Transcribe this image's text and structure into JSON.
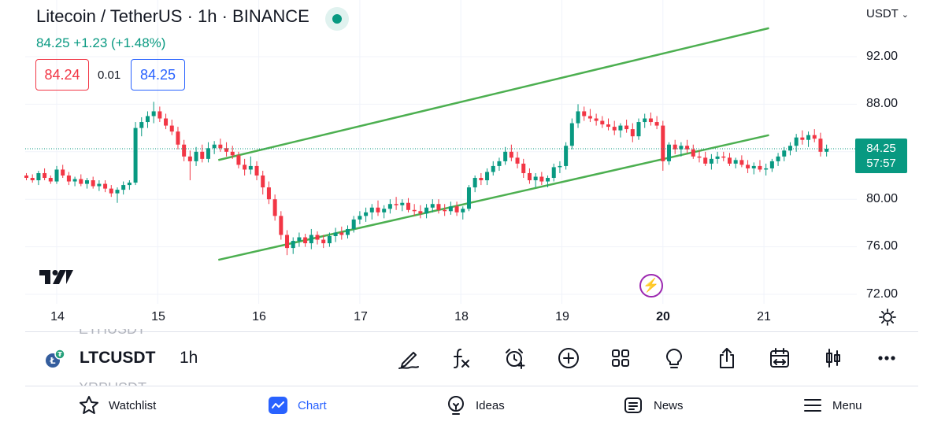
{
  "header": {
    "title": "Litecoin / TetherUS · 1h · BINANCE",
    "quote_line": "84.25 +1.23 (+1.48%)",
    "bid": "84.24",
    "spread": "0.01",
    "ask": "84.25",
    "currency": "USDT"
  },
  "price_axis": {
    "labels": [
      "92.00",
      "88.00",
      "80.00",
      "76.00",
      "72.00"
    ],
    "current_price": "84.25",
    "countdown": "57:57"
  },
  "time_axis": {
    "labels": [
      "14",
      "15",
      "16",
      "17",
      "18",
      "19",
      "20",
      "21"
    ],
    "highlighted": "20"
  },
  "chart_data": {
    "type": "candlestick",
    "series_name": "LTCUSDT",
    "interval": "1h",
    "y_range": [
      72,
      94
    ],
    "x_range": [
      14,
      21
    ],
    "up_color": "#089981",
    "down_color": "#f23645",
    "candles": [
      [
        13.7,
        82.0,
        82.2,
        81.6,
        81.8
      ],
      [
        13.76,
        81.8,
        82.1,
        81.4,
        81.6
      ],
      [
        13.82,
        81.6,
        82.4,
        81.2,
        82.2
      ],
      [
        13.88,
        82.2,
        82.6,
        81.6,
        81.8
      ],
      [
        13.94,
        81.8,
        82.0,
        81.3,
        81.5
      ],
      [
        14.0,
        81.5,
        82.8,
        81.3,
        82.5
      ],
      [
        14.06,
        82.5,
        82.9,
        81.8,
        82.0
      ],
      [
        14.12,
        82.0,
        82.3,
        81.2,
        81.5
      ],
      [
        14.18,
        81.5,
        81.9,
        81.1,
        81.7
      ],
      [
        14.24,
        81.7,
        82.1,
        81.1,
        81.3
      ],
      [
        14.3,
        81.3,
        81.8,
        80.9,
        81.6
      ],
      [
        14.36,
        81.6,
        81.9,
        80.9,
        81.1
      ],
      [
        14.42,
        81.1,
        81.6,
        80.7,
        81.3
      ],
      [
        14.48,
        81.3,
        81.6,
        80.6,
        80.9
      ],
      [
        14.54,
        80.9,
        81.2,
        80.2,
        80.5
      ],
      [
        14.6,
        80.5,
        81.0,
        79.7,
        80.8
      ],
      [
        14.66,
        80.8,
        81.5,
        80.4,
        81.2
      ],
      [
        14.72,
        81.2,
        81.6,
        80.8,
        81.4
      ],
      [
        14.78,
        81.4,
        86.5,
        81.2,
        86.0
      ],
      [
        14.84,
        86.0,
        86.9,
        85.3,
        86.5
      ],
      [
        14.9,
        86.5,
        87.4,
        86.0,
        87.0
      ],
      [
        14.96,
        87.0,
        88.2,
        86.4,
        87.4
      ],
      [
        15.02,
        87.4,
        87.8,
        86.5,
        86.8
      ],
      [
        15.08,
        86.8,
        87.2,
        85.9,
        86.2
      ],
      [
        15.14,
        86.2,
        86.7,
        85.4,
        85.7
      ],
      [
        15.2,
        85.7,
        86.1,
        84.2,
        84.6
      ],
      [
        15.26,
        84.6,
        85.0,
        83.2,
        83.6
      ],
      [
        15.32,
        83.6,
        84.1,
        81.6,
        83.2
      ],
      [
        15.38,
        83.2,
        84.4,
        82.8,
        84.0
      ],
      [
        15.44,
        84.0,
        84.6,
        83.1,
        83.4
      ],
      [
        15.5,
        83.4,
        84.8,
        83.1,
        84.3
      ],
      [
        15.56,
        84.3,
        84.9,
        83.8,
        84.6
      ],
      [
        15.62,
        84.6,
        85.1,
        84.0,
        84.3
      ],
      [
        15.68,
        84.3,
        84.8,
        83.6,
        84.0
      ],
      [
        15.74,
        84.0,
        84.5,
        83.4,
        83.7
      ],
      [
        15.8,
        83.7,
        84.0,
        82.6,
        82.9
      ],
      [
        15.86,
        82.9,
        83.4,
        82.0,
        82.5
      ],
      [
        15.92,
        82.5,
        83.6,
        82.1,
        82.8
      ],
      [
        15.98,
        82.8,
        83.2,
        81.6,
        82.0
      ],
      [
        16.04,
        82.0,
        82.4,
        80.4,
        81.0
      ],
      [
        16.1,
        81.0,
        81.5,
        79.6,
        80.0
      ],
      [
        16.16,
        80.0,
        80.4,
        78.2,
        78.6
      ],
      [
        16.22,
        78.6,
        79.0,
        76.6,
        77.0
      ],
      [
        16.28,
        77.0,
        77.4,
        75.3,
        75.9
      ],
      [
        16.34,
        75.9,
        76.8,
        75.4,
        76.5
      ],
      [
        16.4,
        76.5,
        77.2,
        76.0,
        76.8
      ],
      [
        16.46,
        76.8,
        77.1,
        76.0,
        76.3
      ],
      [
        16.52,
        76.3,
        77.5,
        75.8,
        77.0
      ],
      [
        16.58,
        77.0,
        77.3,
        76.2,
        76.6
      ],
      [
        16.64,
        76.6,
        77.0,
        75.9,
        76.3
      ],
      [
        16.7,
        76.3,
        77.2,
        76.0,
        76.9
      ],
      [
        16.76,
        76.9,
        77.6,
        76.4,
        77.2
      ],
      [
        16.82,
        77.2,
        77.7,
        76.6,
        77.0
      ],
      [
        16.88,
        77.0,
        77.8,
        76.7,
        77.5
      ],
      [
        16.94,
        77.5,
        78.6,
        77.2,
        78.3
      ],
      [
        17.0,
        78.3,
        79.0,
        77.9,
        78.6
      ],
      [
        17.06,
        78.6,
        79.3,
        78.1,
        78.9
      ],
      [
        17.12,
        78.9,
        79.6,
        78.3,
        79.3
      ],
      [
        17.18,
        79.3,
        79.9,
        78.6,
        78.9
      ],
      [
        17.24,
        78.9,
        79.5,
        78.4,
        79.2
      ],
      [
        17.3,
        79.2,
        80.0,
        78.8,
        79.6
      ],
      [
        17.36,
        79.6,
        80.2,
        79.1,
        79.5
      ],
      [
        17.42,
        79.5,
        80.0,
        79.0,
        79.7
      ],
      [
        17.48,
        79.7,
        80.1,
        78.9,
        79.1
      ],
      [
        17.54,
        79.1,
        79.6,
        78.6,
        79.0
      ],
      [
        17.6,
        79.0,
        79.5,
        78.4,
        78.8
      ],
      [
        17.66,
        78.8,
        79.6,
        78.4,
        79.3
      ],
      [
        17.72,
        79.3,
        80.0,
        78.9,
        79.6
      ],
      [
        17.78,
        79.6,
        80.0,
        78.8,
        79.1
      ],
      [
        17.84,
        79.1,
        79.6,
        78.6,
        79.0
      ],
      [
        17.9,
        79.0,
        79.8,
        78.7,
        79.4
      ],
      [
        17.96,
        79.4,
        79.8,
        78.6,
        78.9
      ],
      [
        18.02,
        78.9,
        79.4,
        78.3,
        79.2
      ],
      [
        18.08,
        79.2,
        81.2,
        79.0,
        81.0
      ],
      [
        18.14,
        81.0,
        82.0,
        80.6,
        81.8
      ],
      [
        18.2,
        81.8,
        82.2,
        81.2,
        81.6
      ],
      [
        18.26,
        81.6,
        82.6,
        81.2,
        82.3
      ],
      [
        18.32,
        82.3,
        83.2,
        82.0,
        82.8
      ],
      [
        18.38,
        82.8,
        83.5,
        82.4,
        83.2
      ],
      [
        18.44,
        83.2,
        84.4,
        82.9,
        84.0
      ],
      [
        18.5,
        84.0,
        84.6,
        83.2,
        83.5
      ],
      [
        18.56,
        83.5,
        84.0,
        82.6,
        83.0
      ],
      [
        18.62,
        83.0,
        83.4,
        81.8,
        82.2
      ],
      [
        18.68,
        82.2,
        82.6,
        81.3,
        81.6
      ],
      [
        18.74,
        81.6,
        82.2,
        81.0,
        81.9
      ],
      [
        18.8,
        81.9,
        82.3,
        81.2,
        81.5
      ],
      [
        18.86,
        81.5,
        82.0,
        81.0,
        81.8
      ],
      [
        18.92,
        81.8,
        83.0,
        81.5,
        82.7
      ],
      [
        18.98,
        82.7,
        83.2,
        82.2,
        82.8
      ],
      [
        19.04,
        82.8,
        84.8,
        82.5,
        84.5
      ],
      [
        19.1,
        84.5,
        86.8,
        84.2,
        86.4
      ],
      [
        19.16,
        86.4,
        88.0,
        86.0,
        87.4
      ],
      [
        19.22,
        87.4,
        87.8,
        86.6,
        87.0
      ],
      [
        19.28,
        87.0,
        87.6,
        86.5,
        86.8
      ],
      [
        19.34,
        86.8,
        87.2,
        86.2,
        86.6
      ],
      [
        19.4,
        86.6,
        87.0,
        86.0,
        86.3
      ],
      [
        19.46,
        86.3,
        86.8,
        85.8,
        86.1
      ],
      [
        19.52,
        86.1,
        86.6,
        85.4,
        85.8
      ],
      [
        19.58,
        85.8,
        86.4,
        85.2,
        86.2
      ],
      [
        19.64,
        86.2,
        86.7,
        85.6,
        85.9
      ],
      [
        19.7,
        85.9,
        86.4,
        84.8,
        85.3
      ],
      [
        19.76,
        85.3,
        86.8,
        85.0,
        86.5
      ],
      [
        19.82,
        86.5,
        87.2,
        86.0,
        86.8
      ],
      [
        19.88,
        86.8,
        87.3,
        86.2,
        86.5
      ],
      [
        19.94,
        86.5,
        87.0,
        85.9,
        86.2
      ],
      [
        20.0,
        86.2,
        86.6,
        82.4,
        83.2
      ],
      [
        20.06,
        83.2,
        84.8,
        82.9,
        84.6
      ],
      [
        20.12,
        84.6,
        85.0,
        83.8,
        84.2
      ],
      [
        20.18,
        84.2,
        84.8,
        83.6,
        84.5
      ],
      [
        20.24,
        84.5,
        85.0,
        83.9,
        84.2
      ],
      [
        20.3,
        84.2,
        84.6,
        83.4,
        83.6
      ],
      [
        20.36,
        83.6,
        84.1,
        83.1,
        83.5
      ],
      [
        20.42,
        83.5,
        84.0,
        82.8,
        83.0
      ],
      [
        20.48,
        83.0,
        83.8,
        82.5,
        83.4
      ],
      [
        20.54,
        83.4,
        84.0,
        83.0,
        83.6
      ],
      [
        20.6,
        83.6,
        84.0,
        83.2,
        83.5
      ],
      [
        20.66,
        83.5,
        83.9,
        82.8,
        83.0
      ],
      [
        20.72,
        83.0,
        83.5,
        82.6,
        83.3
      ],
      [
        20.78,
        83.3,
        83.7,
        82.7,
        82.9
      ],
      [
        20.84,
        82.9,
        83.3,
        82.2,
        82.6
      ],
      [
        20.9,
        82.6,
        83.1,
        82.1,
        82.8
      ],
      [
        20.96,
        82.8,
        83.3,
        82.3,
        82.5
      ],
      [
        21.02,
        82.5,
        83.0,
        82.0,
        82.6
      ],
      [
        21.08,
        82.6,
        83.4,
        82.3,
        83.2
      ],
      [
        21.14,
        83.2,
        83.9,
        82.8,
        83.6
      ],
      [
        21.2,
        83.6,
        84.4,
        83.2,
        84.1
      ],
      [
        21.26,
        84.1,
        84.8,
        83.7,
        84.5
      ],
      [
        21.32,
        84.5,
        85.5,
        84.0,
        85.2
      ],
      [
        21.38,
        85.2,
        85.8,
        84.6,
        85.0
      ],
      [
        21.44,
        85.0,
        85.7,
        84.4,
        85.4
      ],
      [
        21.5,
        85.4,
        85.9,
        84.8,
        85.1
      ],
      [
        21.56,
        85.1,
        85.6,
        83.6,
        84.0
      ],
      [
        21.62,
        84.0,
        84.6,
        83.6,
        84.25
      ]
    ],
    "channel_lines": [
      {
        "color": "#4caf50",
        "from": [
          15.6,
          83.3
        ],
        "to": [
          21.05,
          94.4
        ]
      },
      {
        "color": "#4caf50",
        "from": [
          15.6,
          74.9
        ],
        "to": [
          21.05,
          85.4
        ]
      }
    ],
    "last_price": 84.25
  },
  "symbol_bar": {
    "prev_symbol": "ETHUSDT",
    "symbol": "LTCUSDT",
    "interval": "1h",
    "next_symbol": "XRPUSDT",
    "tools": [
      "drawing-tools-icon",
      "indicators-icon",
      "alert-icon",
      "add-symbol-icon",
      "layouts-icon",
      "ideas-bulb-icon",
      "share-icon",
      "replay-icon",
      "chart-type-icon",
      "more-icon"
    ]
  },
  "bottom_nav": {
    "items": [
      {
        "label": "Watchlist",
        "icon": "star-icon"
      },
      {
        "label": "Chart",
        "icon": "chart-icon"
      },
      {
        "label": "Ideas",
        "icon": "bulb-icon"
      },
      {
        "label": "News",
        "icon": "news-icon"
      },
      {
        "label": "Menu",
        "icon": "menu-icon"
      }
    ],
    "active": "Chart"
  }
}
